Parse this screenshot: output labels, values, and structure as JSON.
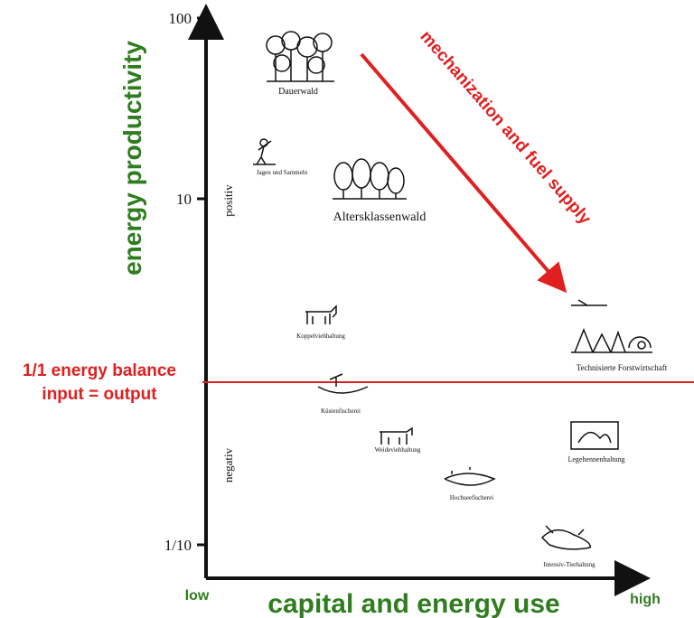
{
  "y_axis": {
    "title": "energy productivity",
    "ticks": [
      "100",
      "10",
      "1/10"
    ],
    "regions": [
      "positiv",
      "negativ"
    ]
  },
  "x_axis": {
    "title": "capital and energy use",
    "low": "low",
    "high": "high"
  },
  "balance_line": {
    "label_lines": [
      "1/1 energy balance",
      "input = output"
    ]
  },
  "trend_arrow": {
    "label": "mechanization and fuel supply"
  },
  "items": [
    {
      "label": "Dauerwald"
    },
    {
      "label": "Jagen und Sammeln"
    },
    {
      "label": "Altersklassenwald"
    },
    {
      "label": "Koppelviehhaltung"
    },
    {
      "label": "Technisierte Forstwirtschaft"
    },
    {
      "label": "Küstenfischerei"
    },
    {
      "label": "Weideviehhaltung"
    },
    {
      "label": "Legehennenhaltung"
    },
    {
      "label": "Hochseefischerei"
    },
    {
      "label": "Intensiv-Tierhaltung"
    }
  ]
}
